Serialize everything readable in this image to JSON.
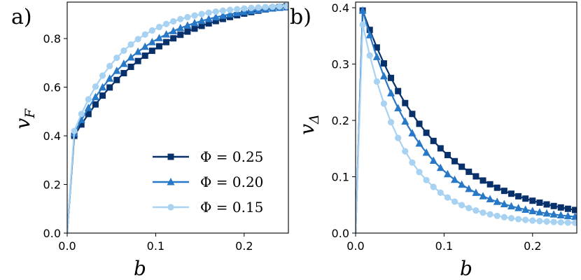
{
  "chart_data": [
    {
      "type": "line",
      "panel_label": "a)",
      "xlabel": "b",
      "ylabel": "v",
      "ylabel_sub": "F",
      "xlim": [
        0,
        0.25
      ],
      "ylim": [
        0,
        0.95
      ],
      "xticks": [
        0.0,
        0.1,
        0.2
      ],
      "xtick_labels": [
        "0.0",
        "0.1",
        "0.2"
      ],
      "yticks": [
        0.0,
        0.2,
        0.4,
        0.6,
        0.8
      ],
      "ytick_labels": [
        "0.0",
        "0.2",
        "0.4",
        "0.6",
        "0.8"
      ],
      "legend": {
        "placement": "lower-right",
        "entries": [
          "Φ = 0.25",
          "Φ = 0.20",
          "Φ = 0.15"
        ]
      },
      "series": [
        {
          "name": "Φ = 0.25",
          "color": "#08306b",
          "marker": "square",
          "v0": 0.4,
          "a": 0.58,
          "k": 10.5
        },
        {
          "name": "Φ = 0.20",
          "color": "#2878c8",
          "marker": "triangle",
          "v0": 0.41,
          "a": 0.54,
          "k": 13.5
        },
        {
          "name": "Φ = 0.15",
          "color": "#a8d2f2",
          "marker": "circle",
          "v0": 0.42,
          "a": 0.52,
          "k": 18.0
        }
      ]
    },
    {
      "type": "line",
      "panel_label": "b)",
      "xlabel": "b",
      "ylabel": "v",
      "ylabel_sub": "Δ",
      "xlim": [
        0,
        0.25
      ],
      "ylim": [
        0,
        0.41
      ],
      "xticks": [
        0.0,
        0.1,
        0.2
      ],
      "xtick_labels": [
        "0.0",
        "0.1",
        "0.2"
      ],
      "yticks": [
        0.0,
        0.1,
        0.2,
        0.3,
        0.4
      ],
      "ytick_labels": [
        "0.0",
        "0.1",
        "0.2",
        "0.3",
        "0.4"
      ],
      "series": [
        {
          "name": "Φ = 0.25",
          "color": "#08306b",
          "marker": "square",
          "peak": 0.395,
          "k": 12.0,
          "c": 0.02
        },
        {
          "name": "Φ = 0.20",
          "color": "#2878c8",
          "marker": "triangle",
          "peak": 0.395,
          "k": 15.5,
          "c": 0.02
        },
        {
          "name": "Φ = 0.15",
          "color": "#a8d2f2",
          "marker": "circle",
          "peak": 0.37,
          "k": 21.0,
          "c": 0.016
        }
      ]
    }
  ]
}
